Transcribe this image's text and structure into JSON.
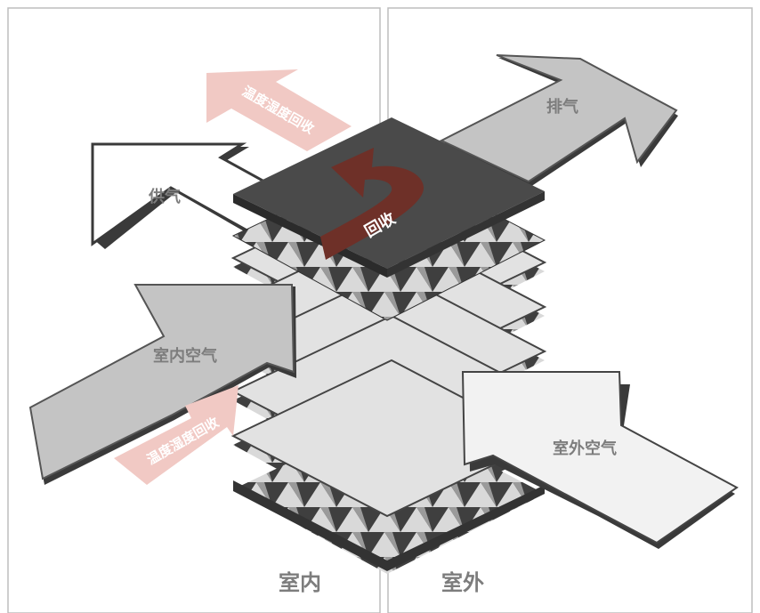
{
  "zones": {
    "indoor_label": "室内",
    "outdoor_label": "室外"
  },
  "arrows": {
    "supply": "供气",
    "exhaust": "排气",
    "indoor_air": "室内空气",
    "outdoor_air": "室外空气",
    "recovery_top": "温度湿度回收",
    "recovery_bottom": "温度湿度回收",
    "recovery_core": "回收"
  },
  "colors": {
    "frame": "#bdbdbd",
    "dark_plate": "#4a4a4a",
    "light_plate": "#dcdcdc",
    "gray_arrow": "#bdbdbd",
    "light_arrow": "#f2f2f2",
    "pink_arrow": "#f1c9c4",
    "core_arrow": "#6e3028",
    "label_gray": "#7d7d7d"
  }
}
